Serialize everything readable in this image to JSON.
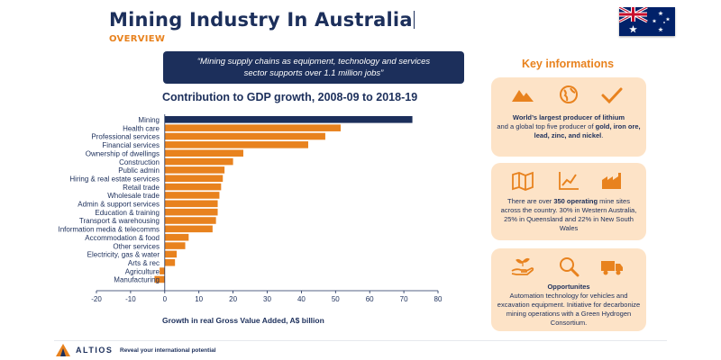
{
  "header": {
    "title": "Mining Industry In Australia",
    "subtitle": "OVERVIEW"
  },
  "quote": "“Mining supply chains as equipment, technology and services sector supports over 1.1 million jobs”",
  "colors": {
    "navy": "#1c2f5b",
    "orange": "#e8821e",
    "card_bg": "#fde3c7"
  },
  "chart_data": {
    "type": "bar",
    "orientation": "horizontal",
    "title": "Contribution to GDP growth, 2008-09 to 2018-19",
    "xlabel": "Growth in real Gross Value Added, A$ billion",
    "ylabel": "",
    "xlim": [
      -20,
      80
    ],
    "xticks": [
      -20,
      -10,
      0,
      10,
      20,
      30,
      40,
      50,
      60,
      70,
      80
    ],
    "grid": false,
    "categories": [
      "Mining",
      "Health care",
      "Professional services",
      "Financial services",
      "Ownership of dwellings",
      "Construction",
      "Public admin",
      "Hiring & real estate services",
      "Retail trade",
      "Wholesale trade",
      "Admin & support services",
      "Education & training",
      "Transport & warehousing",
      "Information media & telecomms",
      "Accommodation & food",
      "Other services",
      "Electricity, gas & water",
      "Arts & rec",
      "Agriculture",
      "Manufacturing"
    ],
    "values": [
      72.5,
      51.5,
      47,
      42,
      23,
      20,
      17.5,
      17,
      16.5,
      16,
      15.5,
      15.5,
      15,
      14,
      7,
      6,
      3.5,
      3,
      -1.5,
      -3
    ],
    "highlight": {
      "category": "Mining",
      "color": "#1c2f5b"
    },
    "bar_color": "#e8821e"
  },
  "key_info": {
    "heading": "Key informations",
    "cards": [
      {
        "icons": [
          "mountains-icon",
          "globe-hand-icon",
          "checkmark-icon"
        ],
        "text_bold": "World’s largest producer of lithium",
        "text_mid": "and a global top five producer of ",
        "text_bold2": "gold, iron ore, lead, zinc, and nickel",
        "text_end": "."
      },
      {
        "icons": [
          "map-icon",
          "chart-growth-icon",
          "factory-icon"
        ],
        "text_start": "There are over ",
        "text_bold": "350 operating",
        "text_end": " mine sites across the country. 30% in Western Australia, 25% in Queensland and 22% in New South Wales"
      },
      {
        "icons": [
          "hand-plant-icon",
          "magnifier-icon",
          "truck-icon"
        ],
        "title": "Opportunites",
        "text": "Automation technology for vehicles and excavation equipment. Initiative for decarbonize mining operations with a Green Hydrogen Consortium."
      }
    ]
  },
  "footer": {
    "brand": "ALTIOS",
    "tagline": "Reveal your international potential"
  }
}
